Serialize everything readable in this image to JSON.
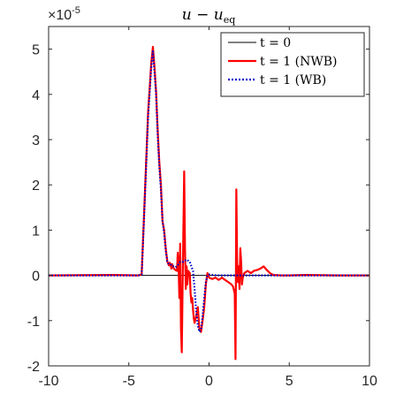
{
  "chart_data": {
    "type": "line",
    "title": "u − u_eq",
    "title_main": "u − u",
    "title_sub": "eq",
    "exponent_prefix": "×10",
    "exponent_power": "-5",
    "xlim": [
      -10,
      10
    ],
    "ylim": [
      -2,
      5.5
    ],
    "xticks": [
      -10,
      -5,
      0,
      5,
      10
    ],
    "xtick_labels": [
      "-10",
      "-5",
      "0",
      "5",
      "10"
    ],
    "yticks": [
      -2,
      -1,
      0,
      1,
      2,
      3,
      4,
      5
    ],
    "ytick_labels": [
      "-2",
      "-1",
      "0",
      "1",
      "2",
      "3",
      "4",
      "5"
    ],
    "grid": false,
    "legend_position": "top-right",
    "series": [
      {
        "name": "t = 0",
        "color": "#000000",
        "style": "solid",
        "x": [
          -10,
          10
        ],
        "y": [
          0,
          0
        ]
      },
      {
        "name": "t = 1 (NWB)",
        "color": "#ff0000",
        "style": "solid",
        "x": [
          -10,
          -6,
          -4.4,
          -4.2,
          -4.0,
          -3.8,
          -3.6,
          -3.5,
          -3.4,
          -3.3,
          -3.2,
          -3.1,
          -3.0,
          -2.9,
          -2.8,
          -2.7,
          -2.6,
          -2.5,
          -2.45,
          -2.4,
          -2.35,
          -2.3,
          -2.25,
          -2.2,
          -2.1,
          -2.0,
          -1.95,
          -1.9,
          -1.85,
          -1.8,
          -1.75,
          -1.7,
          -1.65,
          -1.6,
          -1.55,
          -1.5,
          -1.45,
          -1.4,
          -1.35,
          -1.3,
          -1.2,
          -1.15,
          -1.1,
          -1.05,
          -1.0,
          -0.95,
          -0.9,
          -0.8,
          -0.7,
          -0.6,
          -0.5,
          -0.4,
          -0.3,
          -0.2,
          -0.1,
          0.0,
          0.2,
          0.4,
          0.6,
          0.8,
          1.0,
          1.2,
          1.4,
          1.5,
          1.6,
          1.65,
          1.7,
          1.75,
          1.8,
          1.85,
          1.9,
          1.95,
          2.0,
          2.05,
          2.1,
          2.2,
          2.4,
          2.6,
          2.8,
          3.0,
          3.2,
          3.4,
          3.6,
          3.8,
          4.0,
          4.5,
          5.0,
          6.0,
          8.0,
          10.0
        ],
        "y": [
          0,
          0.01,
          0.0,
          0.02,
          1.8,
          3.6,
          4.7,
          5.05,
          4.6,
          4.05,
          3.2,
          2.5,
          2.0,
          1.2,
          1.0,
          0.6,
          0.3,
          0.22,
          0.28,
          0.25,
          0.15,
          0.25,
          0.2,
          0.15,
          0.12,
          0.1,
          0.5,
          0.2,
          -0.5,
          0.7,
          -1.2,
          -1.7,
          -0.3,
          1.0,
          2.3,
          0.6,
          -0.3,
          0.2,
          -0.2,
          0.1,
          0.05,
          -0.4,
          -0.6,
          -0.5,
          -0.75,
          -0.95,
          -1.05,
          -0.9,
          -0.7,
          -1.2,
          -1.25,
          -1.0,
          -0.7,
          -0.2,
          0.05,
          -0.05,
          -0.08,
          -0.05,
          -0.1,
          -0.05,
          -0.1,
          -0.15,
          -0.2,
          -0.25,
          -0.4,
          -1.85,
          1.9,
          0.3,
          -0.15,
          0.2,
          -0.3,
          0.6,
          0.3,
          -0.2,
          -0.05,
          0.05,
          0.1,
          0.05,
          0.1,
          0.12,
          0.15,
          0.2,
          0.12,
          0.05,
          0.01,
          0.0,
          0.0,
          0.01,
          0.0,
          0.0
        ]
      },
      {
        "name": "t = 1 (WB)",
        "color": "#0000cc",
        "style": "dotted",
        "x": [
          -10,
          -6,
          -4.4,
          -4.2,
          -4.0,
          -3.8,
          -3.6,
          -3.5,
          -3.4,
          -3.3,
          -3.2,
          -3.1,
          -3.0,
          -2.9,
          -2.8,
          -2.7,
          -2.6,
          -2.5,
          -2.4,
          -2.3,
          -2.2,
          -2.1,
          -2.0,
          -1.8,
          -1.6,
          -1.4,
          -1.2,
          -1.0,
          -0.9,
          -0.8,
          -0.7,
          -0.6,
          -0.5,
          -0.4,
          -0.3,
          -0.2,
          -0.1,
          0.0,
          0.5,
          1.0,
          1.5,
          2.0,
          2.5,
          3.0,
          3.5,
          4.0,
          5.0,
          6.0,
          8.0,
          10.0
        ],
        "y": [
          0,
          0.0,
          0.0,
          0.02,
          1.7,
          3.5,
          4.6,
          4.95,
          4.5,
          4.0,
          3.1,
          2.4,
          1.9,
          1.2,
          0.95,
          0.55,
          0.3,
          0.25,
          0.25,
          0.2,
          0.2,
          0.18,
          0.2,
          0.3,
          0.3,
          0.35,
          0.3,
          0.1,
          -0.3,
          -0.8,
          -1.1,
          -1.25,
          -1.2,
          -0.9,
          -0.5,
          -0.15,
          0.0,
          0.02,
          0.0,
          0.0,
          0.0,
          0.0,
          0.0,
          0.0,
          0.0,
          0.0,
          0.0,
          0.0,
          0.0,
          0.0
        ]
      }
    ]
  },
  "legend": {
    "items": [
      {
        "label": "t = 0",
        "color": "#000000",
        "dash": ""
      },
      {
        "label": "t = 1 (NWB)",
        "color": "#ff0000",
        "dash": ""
      },
      {
        "label": "t = 1 (WB)",
        "color": "#0000cc",
        "dash": "2 2"
      }
    ]
  }
}
